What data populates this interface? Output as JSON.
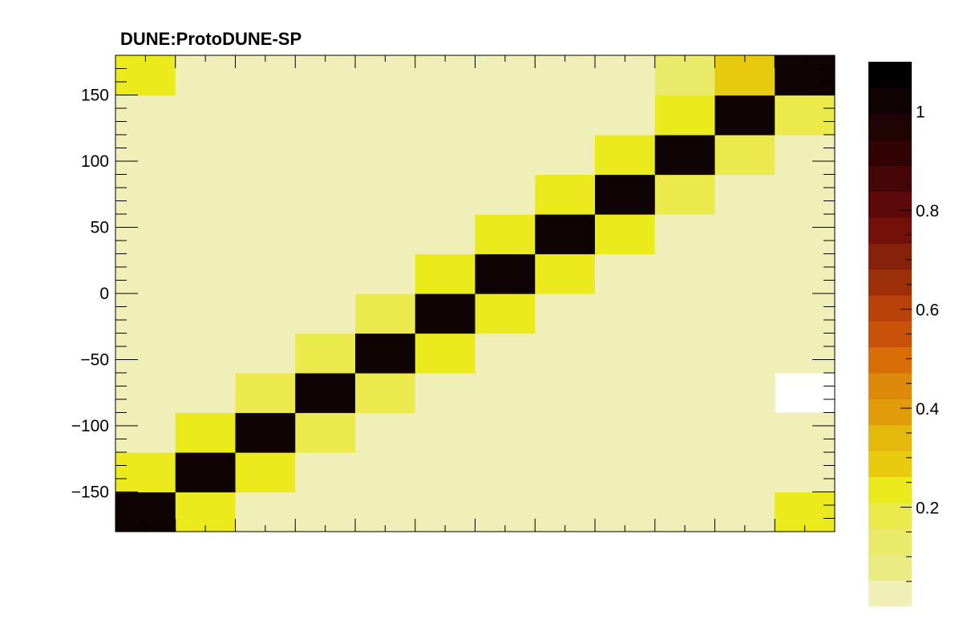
{
  "chart_data": {
    "type": "heatmap",
    "title": "DUNE:ProtoDUNE-SP",
    "xlabel": "",
    "ylabel": "",
    "x_bins": 12,
    "y_bins": 12,
    "ylim": [
      -180,
      180
    ],
    "y_ticks": [
      {
        "value": 150,
        "label": "150"
      },
      {
        "value": 100,
        "label": "100"
      },
      {
        "value": 50,
        "label": "50"
      },
      {
        "value": 0,
        "label": "0"
      },
      {
        "value": -50,
        "label": "−50"
      },
      {
        "value": -100,
        "label": "−100"
      },
      {
        "value": -150,
        "label": "−150"
      }
    ],
    "zlim": [
      0,
      1.1
    ],
    "colorbar_ticks": [
      {
        "value": 1,
        "label": "1"
      },
      {
        "value": 0.8,
        "label": "0.8"
      },
      {
        "value": 0.6,
        "label": "0.6"
      },
      {
        "value": 0.4,
        "label": "0.4"
      },
      {
        "value": 0.2,
        "label": "0.2"
      }
    ],
    "colorbar_levels": 20,
    "colorbar_colors": [
      "#efefb7",
      "#ebeb84",
      "#e9e96a",
      "#eaea4c",
      "#eaea1c",
      "#e8ca0e",
      "#e4b80b",
      "#e09b0a",
      "#dd890a",
      "#d96d08",
      "#c85209",
      "#b8420a",
      "#9d3009",
      "#85200a",
      "#711109",
      "#5c0808",
      "#440606",
      "#310303",
      "#200303",
      "#0f0202",
      "#000000"
    ],
    "values": [
      [
        1.03,
        0.23,
        0.02,
        0.02,
        0.02,
        0.02,
        0.02,
        0.02,
        0.02,
        0.02,
        0.02,
        0.23
      ],
      [
        0.21,
        1.03,
        0.23,
        0.02,
        0.02,
        0.02,
        0.02,
        0.02,
        0.02,
        0.02,
        0.02,
        0.02
      ],
      [
        0.02,
        0.21,
        1.03,
        0.2,
        0.02,
        0.02,
        0.02,
        0.02,
        0.02,
        0.02,
        0.02,
        0.02
      ],
      [
        0.02,
        0.02,
        0.2,
        1.03,
        0.2,
        0.02,
        0.02,
        0.02,
        0.02,
        0.02,
        0.02,
        null
      ],
      [
        0.02,
        0.02,
        0.02,
        0.2,
        1.03,
        0.23,
        0.02,
        0.02,
        0.02,
        0.02,
        0.02,
        0.02
      ],
      [
        0.02,
        0.02,
        0.02,
        0.02,
        0.2,
        1.03,
        0.23,
        0.02,
        0.02,
        0.02,
        0.02,
        0.02
      ],
      [
        0.02,
        0.02,
        0.02,
        0.02,
        0.02,
        0.23,
        1.03,
        0.21,
        0.02,
        0.02,
        0.02,
        0.02
      ],
      [
        0.02,
        0.02,
        0.02,
        0.02,
        0.02,
        0.02,
        0.23,
        1.03,
        0.21,
        0.02,
        0.02,
        0.02
      ],
      [
        0.02,
        0.02,
        0.02,
        0.02,
        0.02,
        0.02,
        0.02,
        0.23,
        1.03,
        0.16,
        0.02,
        0.02
      ],
      [
        0.02,
        0.02,
        0.02,
        0.02,
        0.02,
        0.02,
        0.02,
        0.02,
        0.21,
        1.03,
        0.2,
        0.02
      ],
      [
        0.02,
        0.02,
        0.02,
        0.02,
        0.02,
        0.02,
        0.02,
        0.02,
        0.02,
        0.23,
        1.03,
        0.2
      ],
      [
        0.23,
        0.02,
        0.02,
        0.02,
        0.02,
        0.02,
        0.02,
        0.02,
        0.02,
        0.13,
        0.3,
        1.03
      ]
    ],
    "grid": false
  }
}
